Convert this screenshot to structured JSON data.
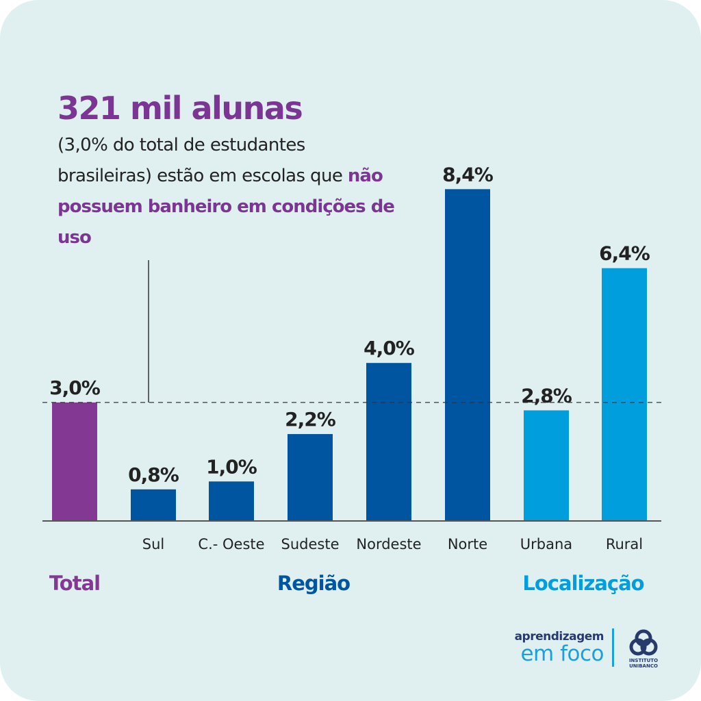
{
  "header": {
    "headline": "321 mil alunas",
    "subtext_part1": "(3,0% do total de estudantes brasileiras) estão em escolas que ",
    "subtext_highlight": "não possuem banheiro em condições de uso"
  },
  "colors": {
    "background": "#e0f0f0",
    "total": "#833994",
    "regiao": "#0055a0",
    "localizacao": "#009edc",
    "headline": "#7b3593",
    "text": "#222222"
  },
  "chart_data": {
    "type": "bar",
    "title": "321 mil alunas",
    "subtitle": "(3,0% do total de estudantes brasileiras) estão em escolas que não possuem banheiro em condições de uso",
    "xlabel": "",
    "ylabel": "",
    "ylim": [
      0,
      9
    ],
    "grid": false,
    "unit": "%",
    "reference_line": {
      "value": 3.0,
      "style": "dashed"
    },
    "categories": [
      "",
      "Sul",
      "C.- Oeste",
      "Sudeste",
      "Nordeste",
      "Norte",
      "Urbana",
      "Rural"
    ],
    "values": [
      3.0,
      0.8,
      1.0,
      2.2,
      4.0,
      8.4,
      2.8,
      6.4
    ],
    "value_labels": [
      "3,0%",
      "0,8%",
      "1,0%",
      "2,2%",
      "4,0%",
      "8,4%",
      "2,8%",
      "6,4%"
    ],
    "bar_groups": [
      "total",
      "regiao",
      "regiao",
      "regiao",
      "regiao",
      "regiao",
      "localizacao",
      "localizacao"
    ],
    "groups": [
      {
        "key": "total",
        "label": "Total",
        "color": "#833994"
      },
      {
        "key": "regiao",
        "label": "Região",
        "color": "#0055a0"
      },
      {
        "key": "localizacao",
        "label": "Localização",
        "color": "#009edc"
      }
    ]
  },
  "branding": {
    "line1": "aprendizagem",
    "line2": "em foco",
    "logo_line1": "INSTITUTO",
    "logo_line2": "UNIBANCO"
  }
}
